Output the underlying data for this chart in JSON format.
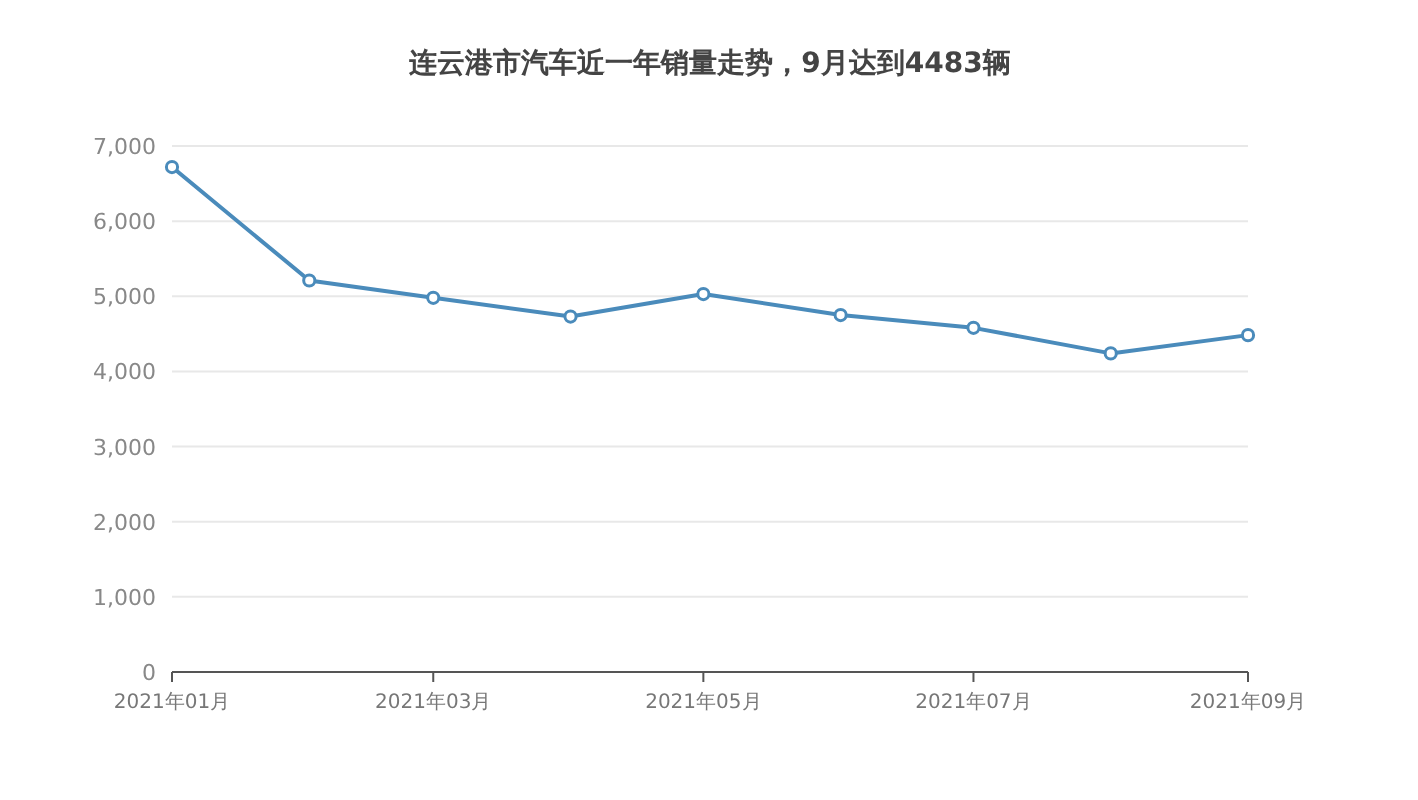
{
  "chart_data": {
    "type": "line",
    "title": "连云港市汽车近一年销量走势，9月达到4483辆",
    "x": [
      "2021-01",
      "2021-02",
      "2021-03",
      "2021-04",
      "2021-05",
      "2021-06",
      "2021-07",
      "2021-08",
      "2021-09"
    ],
    "series": [
      {
        "color": "#4a8bbb",
        "values": [
          6720,
          5210,
          4980,
          4730,
          5030,
          4750,
          4580,
          4240,
          4483
        ]
      }
    ],
    "xlim": [
      "2021-01",
      "2021-09"
    ],
    "xticks": [
      {
        "value": "2021-01",
        "label": "2021年01月"
      },
      {
        "value": "2021-03",
        "label": "2021年03月"
      },
      {
        "value": "2021-05",
        "label": "2021年05月"
      },
      {
        "value": "2021-07",
        "label": "2021年07月"
      },
      {
        "value": "2021-09",
        "label": "2021年09月"
      }
    ],
    "ylim": [
      0,
      7000
    ],
    "yticks": [
      0,
      {
        "value": 1000,
        "label": "1,000"
      },
      {
        "value": 2000,
        "label": "2,000"
      },
      {
        "value": 3000,
        "label": "3,000"
      },
      {
        "value": 4000,
        "label": "4,000"
      },
      {
        "value": 5000,
        "label": "5,000"
      },
      {
        "value": 6000,
        "label": "6,000"
      },
      {
        "value": 7000,
        "label": "7,000"
      }
    ],
    "grid": "y",
    "marker": "circle",
    "line_style": "solid"
  }
}
